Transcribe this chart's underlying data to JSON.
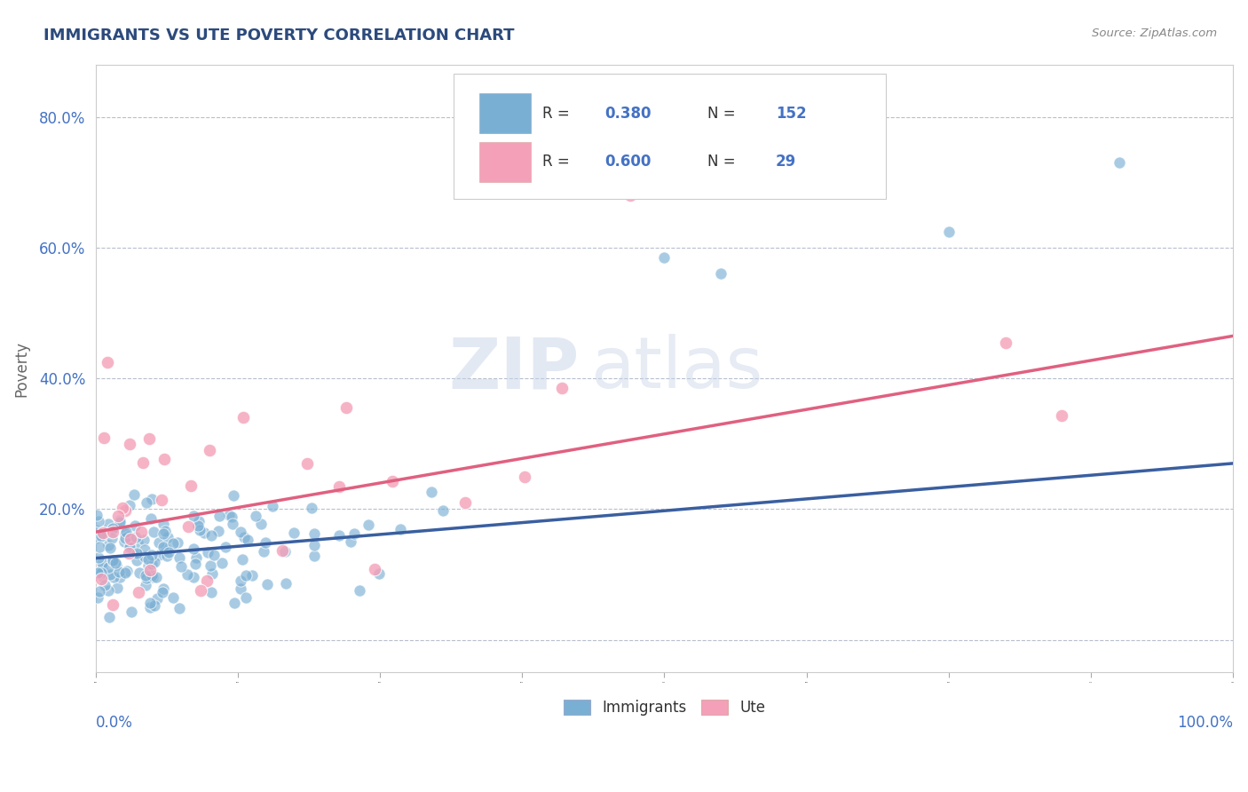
{
  "title": "IMMIGRANTS VS UTE POVERTY CORRELATION CHART",
  "source_text": "Source: ZipAtlas.com",
  "ylabel": "Poverty",
  "watermark_zip": "ZIP",
  "watermark_atlas": "atlas",
  "immigrants_color": "#7aafd4",
  "ute_color": "#f4a0b8",
  "immigrants_line_color": "#3a5fa0",
  "ute_line_color": "#e06080",
  "title_color": "#2c4a7c",
  "axis_label_color": "#4472c4",
  "background_color": "#ffffff",
  "grid_color": "#b0b8c8",
  "xlim": [
    0.0,
    1.0
  ],
  "ylim": [
    -0.05,
    0.88
  ],
  "yticks": [
    0.0,
    0.2,
    0.4,
    0.6,
    0.8
  ],
  "ytick_labels": [
    "",
    "20.0%",
    "40.0%",
    "60.0%",
    "80.0%"
  ],
  "immigrants_N": 152,
  "ute_N": 29,
  "imm_line_x0": 0.0,
  "imm_line_y0": 0.125,
  "imm_line_x1": 1.0,
  "imm_line_y1": 0.27,
  "ute_line_x0": 0.0,
  "ute_line_y0": 0.165,
  "ute_line_x1": 1.0,
  "ute_line_y1": 0.465,
  "legend_R1": "0.380",
  "legend_N1": "152",
  "legend_R2": "0.600",
  "legend_N2": "29"
}
